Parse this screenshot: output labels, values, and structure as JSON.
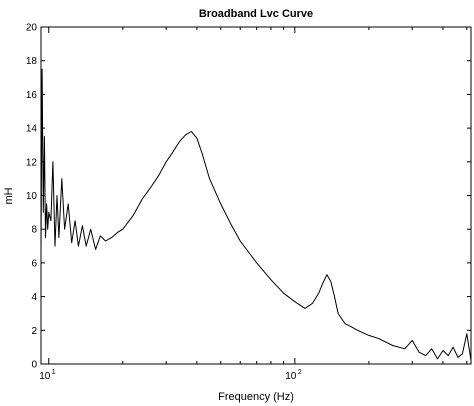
{
  "chart_data": {
    "type": "line",
    "title": "Broadband Lvc Curve",
    "xlabel": "Frequency (Hz)",
    "ylabel": "mH",
    "xscale": "log",
    "xlim": [
      9.3,
      520
    ],
    "ylim": [
      0,
      20
    ],
    "grid": false,
    "legend": "none",
    "y_ticks": [
      0,
      2,
      4,
      6,
      8,
      10,
      12,
      14,
      16,
      18,
      20
    ],
    "x_ticks": [
      {
        "value": 10,
        "base": "10",
        "exp": "1"
      },
      {
        "value": 100,
        "base": "10",
        "exp": "2"
      }
    ],
    "minor_x_ticks": [
      20,
      30,
      40,
      50,
      60,
      70,
      80,
      90,
      200,
      300,
      400,
      500
    ],
    "series": [
      {
        "color": "#000000",
        "x": [
          9.3,
          9.4,
          9.5,
          9.6,
          9.7,
          9.8,
          9.9,
          10.0,
          10.2,
          10.4,
          10.6,
          10.8,
          11.0,
          11.3,
          11.6,
          12.0,
          12.4,
          12.8,
          13.2,
          13.7,
          14.2,
          14.8,
          15.5,
          16.2,
          17.0,
          18.0,
          19.0,
          20.0,
          22.0,
          24.0,
          26.0,
          28.0,
          30.0,
          32.0,
          34.0,
          36.0,
          38.0,
          40.0,
          42.0,
          45.0,
          50.0,
          55.0,
          60.0,
          70.0,
          80.0,
          90.0,
          100.0,
          110.0,
          118.0,
          125.0,
          130.0,
          135.0,
          140.0,
          145.0,
          150.0,
          160.0,
          170.0,
          180.0,
          200.0,
          220.0,
          250.0,
          280.0,
          300.0,
          320.0,
          340.0,
          360.0,
          380.0,
          400.0,
          420.0,
          440.0,
          460.0,
          480.0,
          500.0,
          520.0
        ],
        "y": [
          6.8,
          17.5,
          9.0,
          13.5,
          7.5,
          9.5,
          8.0,
          9.0,
          8.5,
          12.0,
          7.0,
          10.0,
          7.5,
          11.0,
          8.0,
          9.5,
          7.2,
          8.5,
          7.0,
          8.2,
          7.0,
          8.0,
          6.8,
          7.6,
          7.3,
          7.5,
          7.8,
          8.0,
          8.8,
          9.8,
          10.5,
          11.2,
          12.0,
          12.6,
          13.2,
          13.6,
          13.8,
          13.4,
          12.5,
          11.0,
          9.5,
          8.3,
          7.3,
          6.0,
          5.0,
          4.2,
          3.7,
          3.3,
          3.6,
          4.2,
          4.8,
          5.3,
          4.9,
          4.0,
          3.0,
          2.4,
          2.2,
          2.0,
          1.7,
          1.5,
          1.1,
          0.9,
          1.4,
          0.7,
          0.5,
          0.9,
          0.3,
          0.8,
          0.5,
          1.0,
          0.4,
          0.6,
          1.8,
          0.2
        ]
      }
    ]
  }
}
